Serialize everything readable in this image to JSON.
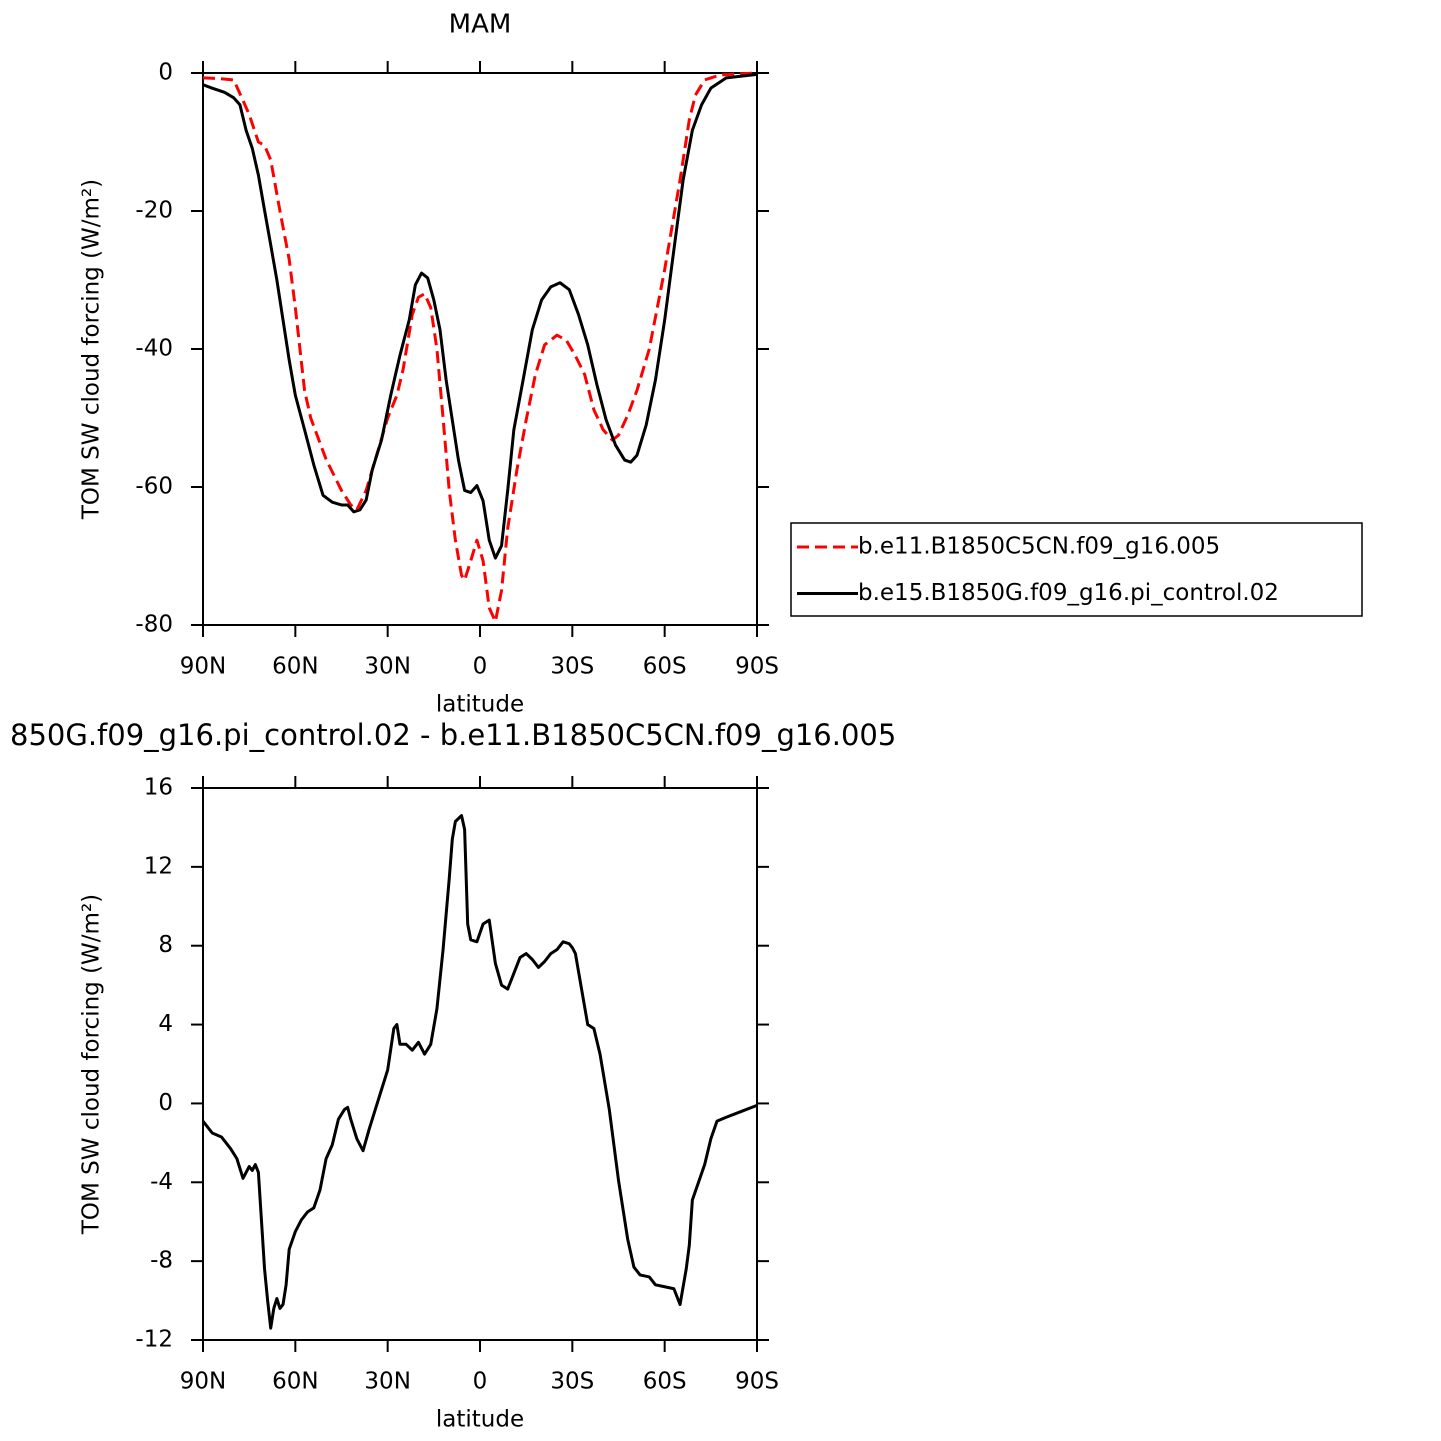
{
  "chart_data": [
    {
      "type": "line",
      "title": "MAM",
      "xlabel": "latitude",
      "ylabel": "TOM SW cloud forcing (W/m²)",
      "xlim": [
        90,
        -90
      ],
      "xticks": [
        {
          "value": 90,
          "label": "90N"
        },
        {
          "value": 60,
          "label": "60N"
        },
        {
          "value": 30,
          "label": "30N"
        },
        0,
        {
          "value": -30,
          "label": "30S"
        },
        {
          "value": -60,
          "label": "60S"
        },
        {
          "value": -90,
          "label": "90S"
        }
      ],
      "ylim": [
        -80,
        0
      ],
      "yticks": [
        0,
        -20,
        -40,
        -60,
        -80
      ],
      "legend": "right",
      "series": [
        {
          "name": "b.e11.B1850C5CN.f09_g16.005",
          "color": "#ff0000",
          "dashed": true,
          "x": [
            90,
            85,
            80,
            78,
            75,
            72,
            70,
            68,
            65,
            62,
            60,
            57,
            55,
            50,
            45,
            42,
            40,
            37,
            35,
            30,
            27,
            25,
            22,
            20,
            18,
            16,
            14,
            12,
            10,
            8,
            6,
            5,
            3,
            1,
            -1,
            -3,
            -5,
            -7,
            -9,
            -12,
            -15,
            -18,
            -21,
            -25,
            -28,
            -31,
            -34,
            -37,
            -40,
            -43,
            -45,
            -48,
            -51,
            -55,
            -60,
            -65,
            -68,
            -70,
            -73,
            -78,
            -85,
            -90
          ],
          "values": [
            -0.7,
            -0.8,
            -1,
            -3,
            -6,
            -10,
            -10.5,
            -12.6,
            -20,
            -27,
            -34,
            -46,
            -50,
            -56,
            -60.5,
            -62.6,
            -63.3,
            -60.5,
            -57.5,
            -50,
            -46.7,
            -43,
            -35,
            -32.5,
            -32,
            -34,
            -40,
            -50,
            -60.5,
            -67.7,
            -72.8,
            -73.5,
            -70.7,
            -67.7,
            -70.7,
            -77.5,
            -79.5,
            -75,
            -66,
            -57.5,
            -50.3,
            -43.7,
            -39.4,
            -38,
            -38.7,
            -41,
            -43.7,
            -48.8,
            -51.7,
            -53.2,
            -52.5,
            -49.6,
            -46,
            -40,
            -28.5,
            -15.5,
            -6.8,
            -3.2,
            -1,
            -0.3,
            -0.1,
            0
          ]
        },
        {
          "name": "b.e15.B1850G.f09_g16.pi_control.02",
          "color": "#000000",
          "dashed": false,
          "x": [
            90,
            87,
            83,
            80,
            78,
            76,
            74,
            72,
            70,
            68,
            66,
            64,
            62,
            60,
            57,
            54,
            51,
            48,
            45,
            43,
            41,
            39,
            37,
            35,
            32,
            29,
            26,
            23,
            21,
            19,
            17,
            15,
            13,
            11,
            9,
            7,
            5,
            3,
            1,
            -1,
            -3,
            -5,
            -7,
            -9,
            -11,
            -14,
            -17,
            -20,
            -23,
            -26,
            -29,
            -32,
            -35,
            -38,
            -41,
            -44,
            -47,
            -49,
            -51,
            -54,
            -57,
            -60,
            -63,
            -66,
            -69,
            -72,
            -75,
            -80,
            -90
          ],
          "values": [
            -1.7,
            -2.2,
            -2.8,
            -3.6,
            -4.6,
            -8.3,
            -10.9,
            -14.8,
            -19.9,
            -24.9,
            -30,
            -35.8,
            -41.6,
            -46.7,
            -51.7,
            -56.8,
            -61.2,
            -62.2,
            -62.6,
            -62.6,
            -63.6,
            -63.3,
            -61.9,
            -57.5,
            -53.2,
            -46.7,
            -40.9,
            -35.8,
            -30.7,
            -29,
            -29.7,
            -32.9,
            -37.2,
            -44.5,
            -50.3,
            -56.1,
            -60.5,
            -60.8,
            -59.8,
            -62,
            -67.7,
            -70.3,
            -68.5,
            -60.5,
            -51.7,
            -44.5,
            -37.2,
            -32.9,
            -31,
            -30.4,
            -31.4,
            -35,
            -39.4,
            -45.2,
            -50.3,
            -53.9,
            -56.1,
            -56.4,
            -55.4,
            -51,
            -44.5,
            -35.8,
            -25.6,
            -15.5,
            -8.3,
            -4.6,
            -2.2,
            -0.7,
            -0.2
          ]
        }
      ]
    },
    {
      "type": "line",
      "title": "850G.f09_g16.pi_control.02 - b.e11.B1850C5CN.f09_g16.005",
      "xlabel": "latitude",
      "ylabel": "TOM SW cloud forcing (W/m²)",
      "xlim": [
        90,
        -90
      ],
      "xticks": [
        {
          "value": 90,
          "label": "90N"
        },
        {
          "value": 60,
          "label": "60N"
        },
        {
          "value": 30,
          "label": "30N"
        },
        0,
        {
          "value": -30,
          "label": "30S"
        },
        {
          "value": -60,
          "label": "60S"
        },
        {
          "value": -90,
          "label": "90S"
        }
      ],
      "ylim": [
        -12,
        16
      ],
      "yticks": [
        16,
        12,
        8,
        4,
        0,
        -4,
        -8,
        -12
      ],
      "color": "#000000",
      "x": [
        90,
        87,
        84,
        81,
        79,
        77,
        75,
        74,
        73,
        72,
        70,
        69,
        68,
        67,
        66,
        65,
        64,
        63,
        62,
        60,
        58,
        56,
        54,
        52,
        50,
        48,
        46,
        44,
        43,
        42,
        40,
        38,
        36,
        34,
        32,
        30,
        28,
        27,
        26,
        24,
        22,
        20,
        18,
        16,
        14,
        12,
        10,
        9,
        8,
        6,
        5,
        4,
        3,
        1,
        -1,
        -3,
        -5,
        -7,
        -9,
        -11,
        -13,
        -15,
        -17,
        -19,
        -21,
        -23,
        -25,
        -27,
        -29,
        -30,
        -31,
        -33,
        -35,
        -37,
        -39,
        -42,
        -45,
        -48,
        -50,
        -52,
        -55,
        -57,
        -60,
        -63,
        -65,
        -67,
        -68,
        -69,
        -71,
        -73,
        -75,
        -77,
        -80,
        -85,
        -90
      ],
      "values": [
        -0.9,
        -1.5,
        -1.7,
        -2.3,
        -2.8,
        -3.8,
        -3.2,
        -3.4,
        -3.1,
        -3.5,
        -8.4,
        -10,
        -11.4,
        -10.4,
        -9.9,
        -10.4,
        -10.2,
        -9.2,
        -7.4,
        -6.5,
        -5.9,
        -5.5,
        -5.3,
        -4.4,
        -2.8,
        -2.1,
        -0.8,
        -0.3,
        -0.2,
        -0.8,
        -1.8,
        -2.4,
        -1.3,
        -0.3,
        0.7,
        1.7,
        3.8,
        4,
        3,
        3,
        2.7,
        3.1,
        2.5,
        3,
        4.8,
        7.8,
        11.4,
        13.4,
        14.3,
        14.6,
        13.9,
        9.1,
        8.3,
        8.2,
        9.1,
        9.3,
        7.1,
        6,
        5.8,
        6.6,
        7.4,
        7.6,
        7.3,
        6.9,
        7.2,
        7.6,
        7.8,
        8.2,
        8.1,
        7.9,
        7.6,
        5.8,
        4,
        3.8,
        2.5,
        -0.3,
        -3.9,
        -6.9,
        -8.3,
        -8.7,
        -8.8,
        -9.2,
        -9.3,
        -9.4,
        -10.2,
        -8.4,
        -7.2,
        -4.9,
        -4,
        -3.1,
        -1.8,
        -0.9,
        -0.7,
        -0.4,
        -0.1
      ]
    }
  ]
}
